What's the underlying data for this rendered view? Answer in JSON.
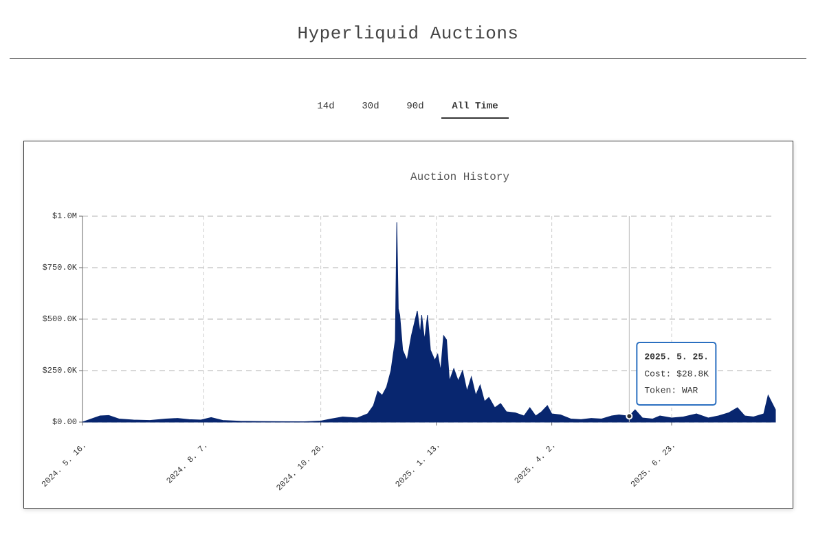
{
  "header": {
    "title": "Hyperliquid Auctions"
  },
  "tabs": {
    "items": [
      "14d",
      "30d",
      "90d",
      "All Time"
    ],
    "active": 3
  },
  "chart_data": {
    "type": "area",
    "title": "Auction History",
    "color": "#08266f",
    "x": [
      "2024-05-16",
      "2024-05-22",
      "2024-05-28",
      "2024-06-03",
      "2024-06-10",
      "2024-06-20",
      "2024-07-01",
      "2024-07-12",
      "2024-07-20",
      "2024-07-28",
      "2024-08-05",
      "2024-08-12",
      "2024-08-20",
      "2024-09-01",
      "2024-09-15",
      "2024-10-01",
      "2024-10-15",
      "2024-10-26",
      "2024-11-02",
      "2024-11-10",
      "2024-11-20",
      "2024-11-27",
      "2024-12-01",
      "2024-12-04",
      "2024-12-07",
      "2024-12-10",
      "2024-12-13",
      "2024-12-16",
      "2024-12-17",
      "2024-12-18",
      "2024-12-19",
      "2024-12-21",
      "2024-12-24",
      "2024-12-27",
      "2024-12-31",
      "2025-01-02",
      "2025-01-03",
      "2025-01-05",
      "2025-01-07",
      "2025-01-09",
      "2025-01-12",
      "2025-01-14",
      "2025-01-16",
      "2025-01-18",
      "2025-01-20",
      "2025-01-22",
      "2025-01-25",
      "2025-01-28",
      "2025-01-31",
      "2025-02-03",
      "2025-02-06",
      "2025-02-09",
      "2025-02-12",
      "2025-02-15",
      "2025-02-18",
      "2025-02-22",
      "2025-02-26",
      "2025-03-02",
      "2025-03-08",
      "2025-03-14",
      "2025-03-18",
      "2025-03-22",
      "2025-03-26",
      "2025-03-30",
      "2025-04-02",
      "2025-04-08",
      "2025-04-15",
      "2025-04-22",
      "2025-04-29",
      "2025-05-06",
      "2025-05-13",
      "2025-05-18",
      "2025-05-25",
      "2025-05-29",
      "2025-06-03",
      "2025-06-10",
      "2025-06-15",
      "2025-06-23",
      "2025-07-01",
      "2025-07-10",
      "2025-07-18",
      "2025-07-25",
      "2025-08-01",
      "2025-08-07",
      "2025-08-12",
      "2025-08-18",
      "2025-08-25",
      "2025-08-28",
      "2025-09-02"
    ],
    "values": [
      0,
      15000,
      30000,
      32000,
      15000,
      10000,
      8000,
      15000,
      18000,
      12000,
      10000,
      22000,
      8000,
      4000,
      3000,
      2000,
      1500,
      5000,
      15000,
      25000,
      20000,
      40000,
      80000,
      150000,
      130000,
      170000,
      250000,
      400000,
      970000,
      550000,
      520000,
      350000,
      300000,
      420000,
      540000,
      430000,
      520000,
      400000,
      520000,
      350000,
      300000,
      330000,
      250000,
      420000,
      400000,
      200000,
      260000,
      200000,
      250000,
      150000,
      220000,
      130000,
      180000,
      100000,
      120000,
      70000,
      90000,
      50000,
      45000,
      30000,
      70000,
      30000,
      50000,
      80000,
      40000,
      35000,
      15000,
      12000,
      18000,
      15000,
      30000,
      35000,
      28800,
      60000,
      20000,
      15000,
      30000,
      20000,
      25000,
      40000,
      20000,
      30000,
      45000,
      70000,
      30000,
      25000,
      40000,
      130000,
      60000
    ],
    "xlim": [
      "2024-05-16",
      "2025-09-02"
    ],
    "xticks": [
      {
        "value": "2024-05-16",
        "label": "2024. 5. 16."
      },
      {
        "value": "2024-08-07",
        "label": "2024. 8. 7."
      },
      {
        "value": "2024-10-26",
        "label": "2024. 10. 26."
      },
      {
        "value": "2025-01-13",
        "label": "2025. 1. 13."
      },
      {
        "value": "2025-04-02",
        "label": "2025. 4. 2."
      },
      {
        "value": "2025-06-23",
        "label": "2025. 6. 23."
      }
    ],
    "ylim": [
      0,
      1000000
    ],
    "yticks": [
      {
        "value": 0,
        "label": "$0.00"
      },
      {
        "value": 250000,
        "label": "$250.0K"
      },
      {
        "value": 500000,
        "label": "$500.0K"
      },
      {
        "value": 750000,
        "label": "$750.0K"
      },
      {
        "value": 1000000,
        "label": "$1.0M"
      }
    ],
    "grid": true,
    "tooltip": {
      "title": "2025. 5. 25.",
      "lines": [
        "Cost: $28.8K",
        "Token: WAR"
      ]
    }
  }
}
